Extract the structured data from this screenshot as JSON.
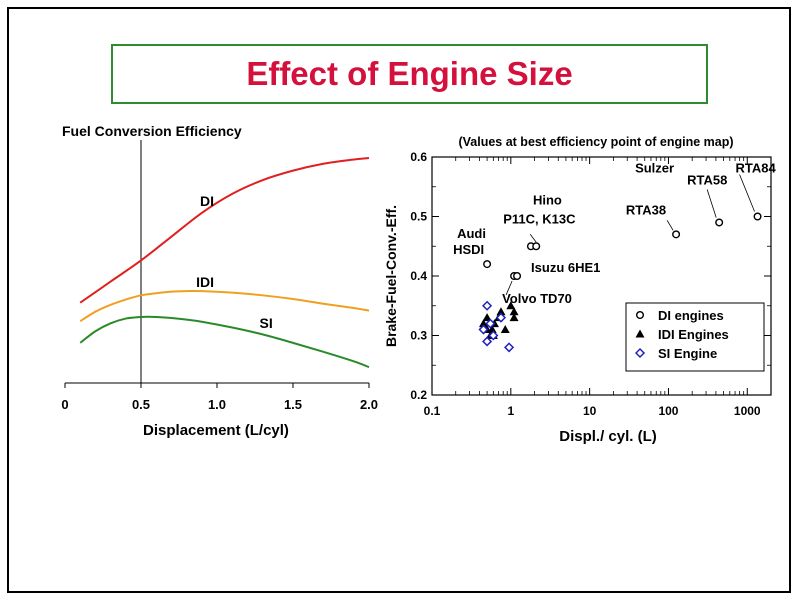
{
  "slide": {
    "title": "Effect of Engine Size",
    "title_color": "#d4103c",
    "title_border_color": "#2e8b2e"
  },
  "chart_data": [
    {
      "type": "line",
      "title": "Fuel Conversion Efficiency",
      "xlabel": "Displacement (L/cyl)",
      "ylabel": "",
      "xlim": [
        0,
        2.0
      ],
      "x_ticks": [
        "0",
        "0.5",
        "1.0",
        "1.5",
        "2.0"
      ],
      "x_tick_values": [
        0,
        0.5,
        1.0,
        1.5,
        2.0
      ],
      "reference_line_x": 0.5,
      "y_axis_numeric": false,
      "series": [
        {
          "name": "DI",
          "color": "#e02020",
          "x": [
            0.1,
            0.3,
            0.5,
            0.7,
            0.9,
            1.1,
            1.3,
            1.5,
            1.7,
            1.9,
            2.0
          ],
          "y": [
            0.372,
            0.412,
            0.452,
            0.497,
            0.542,
            0.578,
            0.604,
            0.622,
            0.635,
            0.643,
            0.646
          ]
        },
        {
          "name": "IDI",
          "color": "#f0a020",
          "x": [
            0.1,
            0.2,
            0.3,
            0.4,
            0.5,
            0.6,
            0.7,
            0.8,
            0.9,
            1.1,
            1.3,
            1.5,
            1.7,
            1.9,
            2.0
          ],
          "y": [
            0.337,
            0.355,
            0.368,
            0.378,
            0.386,
            0.39,
            0.393,
            0.394,
            0.394,
            0.391,
            0.386,
            0.379,
            0.37,
            0.362,
            0.357
          ]
        },
        {
          "name": "SI",
          "color": "#2a8a2a",
          "x": [
            0.1,
            0.2,
            0.3,
            0.4,
            0.5,
            0.6,
            0.7,
            0.8,
            0.9,
            1.1,
            1.3,
            1.5,
            1.7,
            1.9,
            2.0
          ],
          "y": [
            0.296,
            0.318,
            0.333,
            0.342,
            0.345,
            0.345,
            0.343,
            0.34,
            0.336,
            0.325,
            0.312,
            0.296,
            0.279,
            0.261,
            0.25
          ]
        }
      ],
      "ylim": [
        0.22,
        0.68
      ]
    },
    {
      "type": "scatter",
      "title": "(Values at best efficiency point of engine map)",
      "xlabel": "Displ./ cyl. (L)",
      "ylabel": "Brake-Fuel-Conv.-Eff.",
      "x_scale": "log",
      "xlim": [
        0.1,
        2000
      ],
      "ylim": [
        0.2,
        0.6
      ],
      "x_ticks": [
        "0.1",
        "1",
        "10",
        "100",
        "1000"
      ],
      "x_tick_values": [
        0.1,
        1,
        10,
        100,
        1000
      ],
      "y_ticks": [
        "0.2",
        "0.3",
        "0.4",
        "0.5",
        "0.6"
      ],
      "y_tick_values": [
        0.2,
        0.3,
        0.4,
        0.5,
        0.6
      ],
      "legend": {
        "placement": "lower-right",
        "entries": [
          "DI engines",
          "IDI Engines",
          "SI Engine"
        ]
      },
      "series": [
        {
          "name": "DI engines",
          "marker": "circle-open",
          "color": "#000000",
          "points": [
            [
              0.5,
              0.42
            ],
            [
              1.8,
              0.45
            ],
            [
              2.1,
              0.45
            ],
            [
              1.1,
              0.4
            ],
            [
              1.2,
              0.4
            ],
            [
              125,
              0.47
            ],
            [
              440,
              0.49
            ],
            [
              1350,
              0.5
            ]
          ]
        },
        {
          "name": "IDI Engines",
          "marker": "triangle-filled",
          "color": "#000000",
          "points": [
            [
              0.45,
              0.32
            ],
            [
              0.5,
              0.33
            ],
            [
              0.5,
              0.31
            ],
            [
              0.55,
              0.3
            ],
            [
              0.58,
              0.31
            ],
            [
              0.6,
              0.3
            ],
            [
              0.62,
              0.32
            ],
            [
              0.7,
              0.33
            ],
            [
              0.75,
              0.34
            ],
            [
              0.85,
              0.31
            ],
            [
              1.0,
              0.35
            ],
            [
              1.1,
              0.34
            ],
            [
              1.1,
              0.33
            ]
          ]
        },
        {
          "name": "SI Engine",
          "marker": "diamond-open",
          "color": "#2020c0",
          "points": [
            [
              0.45,
              0.31
            ],
            [
              0.5,
              0.35
            ],
            [
              0.5,
              0.29
            ],
            [
              0.55,
              0.32
            ],
            [
              0.6,
              0.3
            ],
            [
              0.75,
              0.33
            ],
            [
              0.95,
              0.28
            ]
          ]
        }
      ],
      "annotations": [
        {
          "text": "Audi",
          "anchor": [
            0.5,
            0.42
          ]
        },
        {
          "text": "HSDI",
          "anchor": [
            0.5,
            0.42
          ]
        },
        {
          "text": "Hino",
          "anchor": [
            1.8,
            0.45
          ]
        },
        {
          "text": "P11C, K13C",
          "anchor": [
            2.1,
            0.45
          ]
        },
        {
          "text": "Isuzu 6HE1",
          "anchor": [
            1.2,
            0.4
          ]
        },
        {
          "text": "Volvo TD70",
          "anchor": [
            1.1,
            0.4
          ]
        },
        {
          "text": "Sulzer",
          "anchor": [
            125,
            0.47
          ]
        },
        {
          "text": "RTA38",
          "anchor": [
            125,
            0.47
          ]
        },
        {
          "text": "RTA58",
          "anchor": [
            440,
            0.49
          ]
        },
        {
          "text": "RTA84",
          "anchor": [
            1350,
            0.5
          ]
        }
      ]
    }
  ]
}
